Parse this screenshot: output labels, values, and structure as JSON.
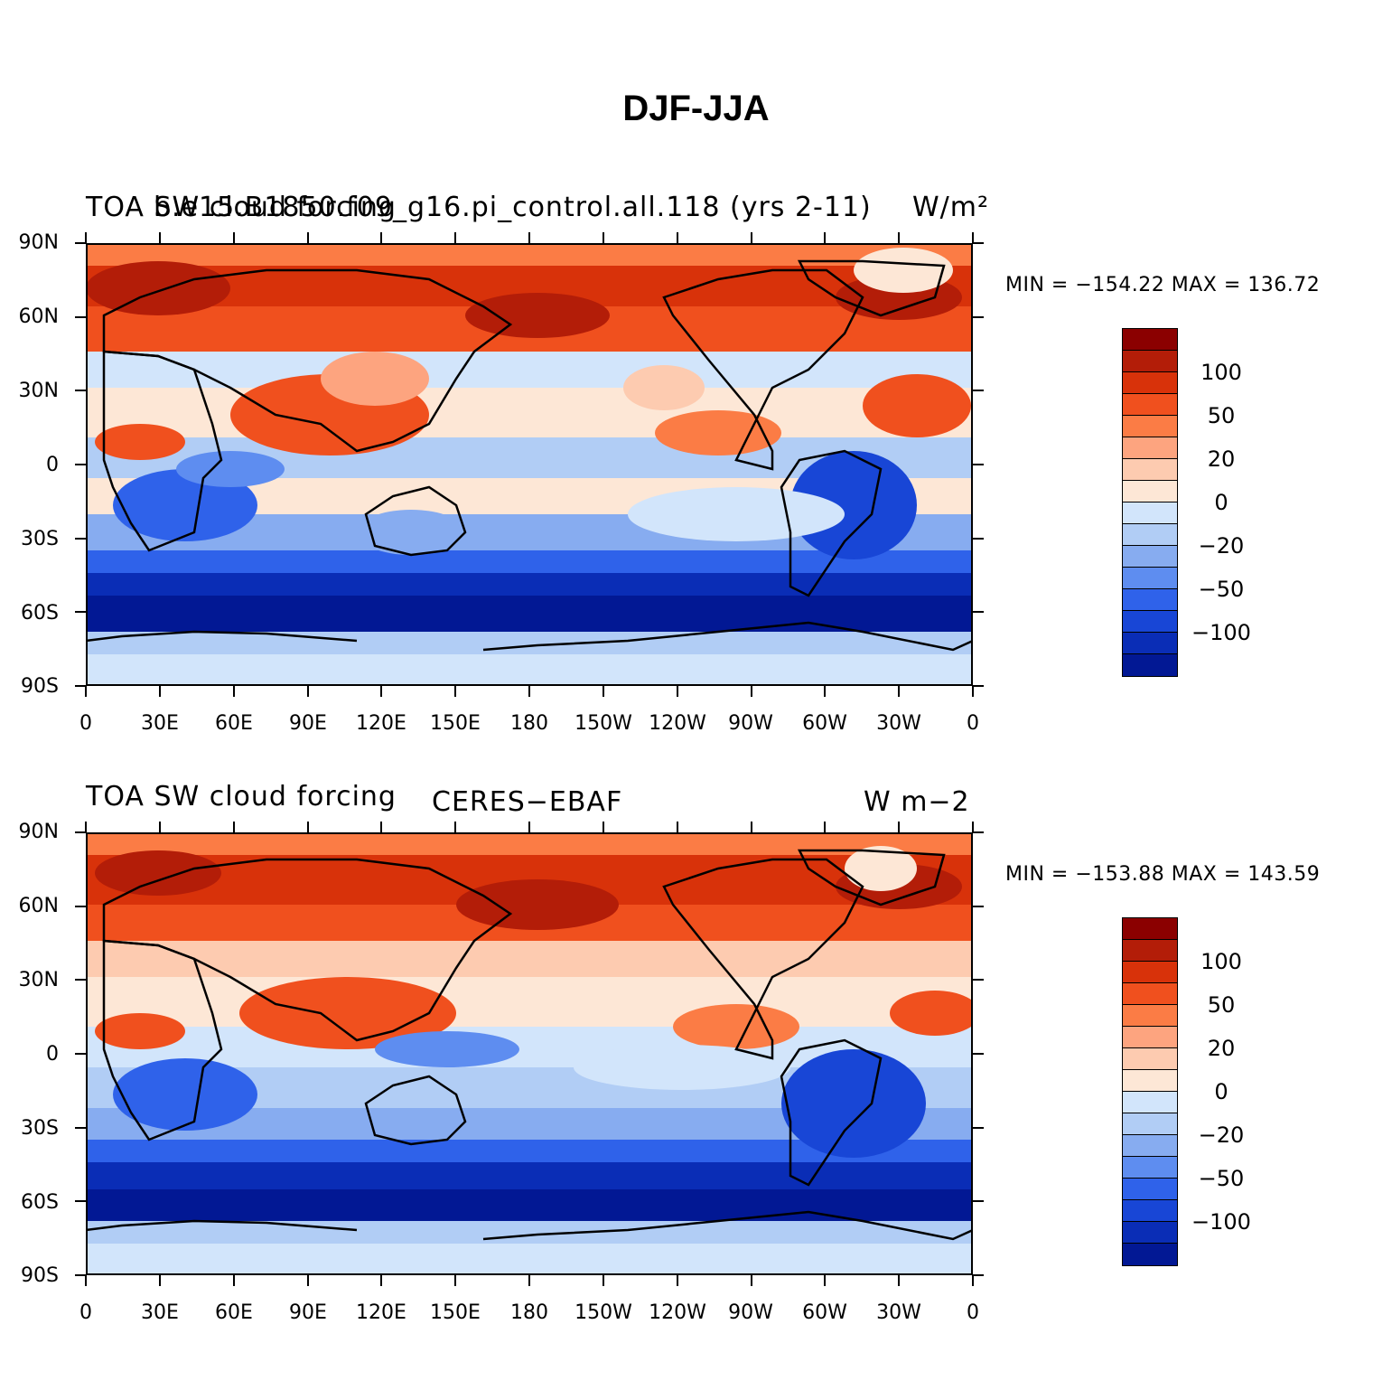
{
  "title": "DJF-JJA",
  "colors": {
    "levels": [
      "#8b0000",
      "#b31d08",
      "#d8320a",
      "#f0501e",
      "#fb7c45",
      "#fda47f",
      "#fdcbb0",
      "#fde7d6",
      "#d2e5fb",
      "#b1cdf5",
      "#87acf0",
      "#5e8df0",
      "#2f62ea",
      "#1846d6",
      "#0a2db6",
      "#021894"
    ],
    "coast": "#000000"
  },
  "x_ticks": [
    "0",
    "30E",
    "60E",
    "90E",
    "120E",
    "150E",
    "180",
    "150W",
    "120W",
    "90W",
    "60W",
    "30W",
    "0"
  ],
  "y_ticks": [
    "90N",
    "60N",
    "30N",
    "0",
    "30S",
    "60S",
    "90S"
  ],
  "colorbar_labels": [
    "100",
    "50",
    "20",
    "0",
    "−20",
    "−50",
    "−100"
  ],
  "panels": [
    {
      "left_label": "TOA SW cloud forcing",
      "center_label": "b.e15.B1850.f09_g16.pi_control.all.118 (yrs 2-11)",
      "right_label": "W/m²",
      "stats": "MIN = −154.22 MAX = 136.72"
    },
    {
      "left_label": "TOA SW cloud forcing",
      "center_label": "CERES−EBAF",
      "right_label": "W m−2",
      "stats": "MIN = −153.88 MAX = 143.59"
    }
  ]
}
